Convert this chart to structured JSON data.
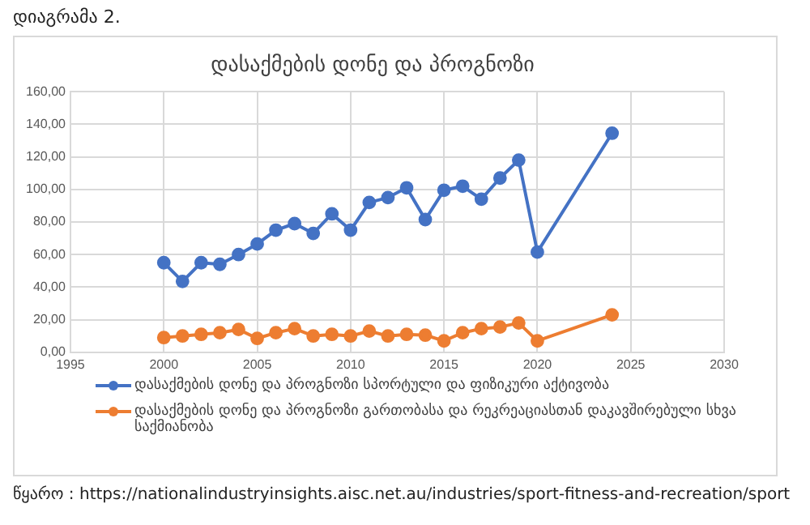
{
  "chart_data": {
    "type": "line",
    "title": "დასაქმების დონე და პროგნოზი",
    "annotations": [
      "დიაგრამა 2.",
      "წყარო : https://nationalindustryinsights.aisc.net.au/industries/sport-fitness-and-recreation/sport"
    ],
    "x": [
      2000,
      2001,
      2002,
      2003,
      2004,
      2005,
      2006,
      2007,
      2008,
      2009,
      2010,
      2011,
      2012,
      2013,
      2014,
      2015,
      2016,
      2017,
      2018,
      2019,
      2020,
      2024
    ],
    "series": [
      {
        "name": "დასაქმების დონე და პროგნოზი სპორტული და ფიზიკური აქტივობა",
        "color": "#4472c4",
        "values": [
          55,
          43.5,
          55,
          54,
          60,
          66.5,
          75,
          79,
          73,
          85,
          75,
          92,
          95,
          101,
          81.5,
          99.5,
          102,
          94,
          107,
          118,
          61.5,
          134.5
        ]
      },
      {
        "name": "დასაქმების დონე და პროგნოზი გართობასა და რეკრეაციასთან დაკავშირებული სხვა საქმიანობა",
        "color": "#ed7d31",
        "values": [
          9,
          10,
          11,
          12,
          14,
          8.5,
          12,
          14.5,
          10,
          11,
          10,
          13,
          10,
          11,
          10.5,
          7,
          12,
          14.5,
          15.5,
          18,
          7,
          23
        ]
      }
    ],
    "xlim": [
      1995,
      2030
    ],
    "xticks": [
      1995,
      2000,
      2005,
      2010,
      2015,
      2020,
      2025,
      2030
    ],
    "ylim": [
      0,
      160
    ],
    "yticks": [
      {
        "value": 0,
        "label": "0,00"
      },
      {
        "value": 20,
        "label": "20,00"
      },
      {
        "value": 40,
        "label": "40,00"
      },
      {
        "value": 60,
        "label": "60,00"
      },
      {
        "value": 80,
        "label": "80,00"
      },
      {
        "value": 100,
        "label": "100,00"
      },
      {
        "value": 120,
        "label": "120,00"
      },
      {
        "value": 140,
        "label": "140,00"
      },
      {
        "value": 160,
        "label": "160,00"
      }
    ],
    "grid": true,
    "legend": "bottom",
    "marker": "circle",
    "line_style": "solid"
  }
}
